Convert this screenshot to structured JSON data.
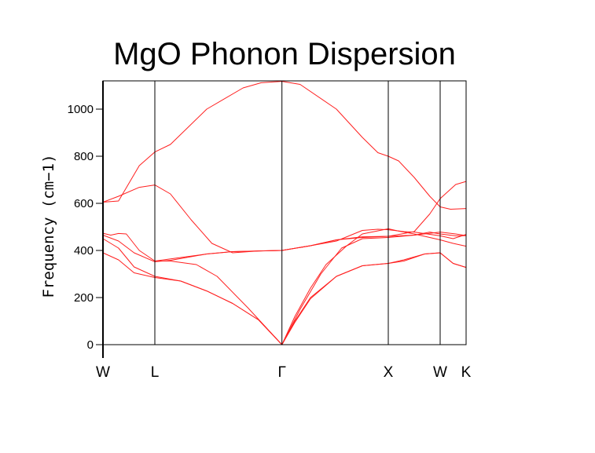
{
  "chart_data": {
    "type": "line",
    "title": "MgO Phonon Dispersion",
    "xlabel": "",
    "ylabel": "Frequency (cm−1)",
    "ylim": [
      0,
      1120
    ],
    "xlim": [
      0,
      7
    ],
    "yticks": [
      0,
      200,
      400,
      600,
      800,
      1000
    ],
    "ytick_labels": [
      "0",
      "200",
      "400",
      "600",
      "800",
      "1000"
    ],
    "grid": false,
    "line_color": "#ff2020",
    "kpoints": [
      {
        "label": "W",
        "x": 0
      },
      {
        "label": "L",
        "x": 1
      },
      {
        "label": "Γ",
        "x": 3.45
      },
      {
        "label": "X",
        "x": 5.5
      },
      {
        "label": "W",
        "x": 6.5
      },
      {
        "label": "K",
        "x": 7
      }
    ],
    "series": [
      {
        "name": "branch-1",
        "points": [
          [
            0,
            605
          ],
          [
            0.3,
            610
          ],
          [
            0.7,
            760
          ],
          [
            1.0,
            818
          ],
          [
            1.3,
            850
          ],
          [
            2.0,
            1000
          ],
          [
            2.7,
            1090
          ],
          [
            3.05,
            1112
          ],
          [
            3.45,
            1118
          ],
          [
            3.8,
            1105
          ],
          [
            4.5,
            1000
          ],
          [
            5.0,
            880
          ],
          [
            5.3,
            815
          ],
          [
            5.5,
            800
          ],
          [
            5.7,
            780
          ],
          [
            6.0,
            710
          ],
          [
            6.3,
            630
          ],
          [
            6.5,
            585
          ],
          [
            6.7,
            575
          ],
          [
            7,
            578
          ]
        ]
      },
      {
        "name": "branch-2",
        "points": [
          [
            0,
            605
          ],
          [
            0.3,
            630
          ],
          [
            0.7,
            668
          ],
          [
            1.0,
            678
          ],
          [
            1.3,
            640
          ],
          [
            1.7,
            530
          ],
          [
            2.1,
            430
          ],
          [
            2.5,
            390
          ],
          [
            3.0,
            398
          ],
          [
            3.45,
            400
          ],
          [
            4.0,
            420
          ],
          [
            4.5,
            445
          ],
          [
            5.0,
            458
          ],
          [
            5.5,
            460
          ],
          [
            6.0,
            480
          ],
          [
            6.3,
            555
          ],
          [
            6.5,
            620
          ],
          [
            6.8,
            680
          ],
          [
            7,
            693
          ]
        ]
      },
      {
        "name": "branch-3",
        "points": [
          [
            0,
            473
          ],
          [
            0.15,
            465
          ],
          [
            0.3,
            472
          ],
          [
            0.45,
            470
          ],
          [
            0.7,
            400
          ],
          [
            1.0,
            355
          ],
          [
            1.5,
            370
          ],
          [
            2.0,
            385
          ],
          [
            2.5,
            395
          ],
          [
            3.0,
            398
          ],
          [
            3.45,
            400
          ],
          [
            4.0,
            420
          ],
          [
            4.5,
            445
          ],
          [
            5.0,
            455
          ],
          [
            5.5,
            460
          ],
          [
            6.0,
            465
          ],
          [
            6.3,
            478
          ],
          [
            6.5,
            470
          ],
          [
            6.8,
            462
          ],
          [
            7,
            463
          ]
        ]
      },
      {
        "name": "branch-4",
        "points": [
          [
            0,
            465
          ],
          [
            0.3,
            440
          ],
          [
            0.6,
            390
          ],
          [
            1.0,
            352
          ],
          [
            1.3,
            358
          ],
          [
            2.0,
            385
          ],
          [
            2.5,
            395
          ],
          [
            3.45,
            400
          ],
          [
            4.0,
            420
          ],
          [
            4.5,
            440
          ],
          [
            5.0,
            485
          ],
          [
            5.3,
            490
          ],
          [
            5.5,
            488
          ],
          [
            5.8,
            480
          ],
          [
            6.0,
            478
          ],
          [
            6.5,
            462
          ],
          [
            6.75,
            450
          ],
          [
            7,
            468
          ]
        ]
      },
      {
        "name": "branch-5",
        "points": [
          [
            0,
            450
          ],
          [
            0.3,
            410
          ],
          [
            0.6,
            330
          ],
          [
            1.0,
            290
          ],
          [
            1.5,
            270
          ],
          [
            2.0,
            228
          ],
          [
            2.5,
            175
          ],
          [
            3.0,
            105
          ],
          [
            3.45,
            0
          ],
          [
            3.7,
            120
          ],
          [
            4.0,
            240
          ],
          [
            4.3,
            340
          ],
          [
            4.7,
            420
          ],
          [
            5.0,
            470
          ],
          [
            5.5,
            492
          ],
          [
            5.7,
            482
          ],
          [
            6.0,
            470
          ],
          [
            6.5,
            445
          ],
          [
            6.75,
            430
          ],
          [
            7,
            418
          ]
        ]
      },
      {
        "name": "branch-6",
        "points": [
          [
            0,
            390
          ],
          [
            0.3,
            360
          ],
          [
            0.6,
            305
          ],
          [
            1.0,
            285
          ],
          [
            1.5,
            270
          ],
          [
            2.0,
            228
          ],
          [
            2.5,
            175
          ],
          [
            3.0,
            105
          ],
          [
            3.45,
            0
          ],
          [
            3.7,
            100
          ],
          [
            4.0,
            200
          ],
          [
            4.5,
            290
          ],
          [
            5.0,
            335
          ],
          [
            5.5,
            345
          ],
          [
            5.8,
            360
          ],
          [
            6.2,
            385
          ],
          [
            6.5,
            390
          ],
          [
            6.75,
            345
          ],
          [
            7,
            328
          ]
        ]
      },
      {
        "name": "branch-7",
        "points": [
          [
            1.0,
            355
          ],
          [
            1.3,
            355
          ],
          [
            1.8,
            340
          ],
          [
            2.2,
            290
          ],
          [
            2.8,
            155
          ],
          [
            3.45,
            0
          ],
          [
            3.7,
            95
          ],
          [
            4.0,
            195
          ],
          [
            4.5,
            290
          ],
          [
            5.0,
            335
          ],
          [
            5.5,
            345
          ],
          [
            5.8,
            355
          ],
          [
            6.2,
            385
          ],
          [
            6.5,
            390
          ],
          [
            6.75,
            345
          ],
          [
            7,
            328
          ]
        ]
      },
      {
        "name": "branch-8",
        "points": [
          [
            3.45,
            0
          ],
          [
            3.8,
            150
          ],
          [
            4.2,
            300
          ],
          [
            4.6,
            410
          ],
          [
            5.0,
            450
          ],
          [
            5.5,
            455
          ],
          [
            6.0,
            465
          ],
          [
            6.5,
            478
          ],
          [
            6.8,
            470
          ],
          [
            7,
            463
          ]
        ]
      }
    ]
  }
}
